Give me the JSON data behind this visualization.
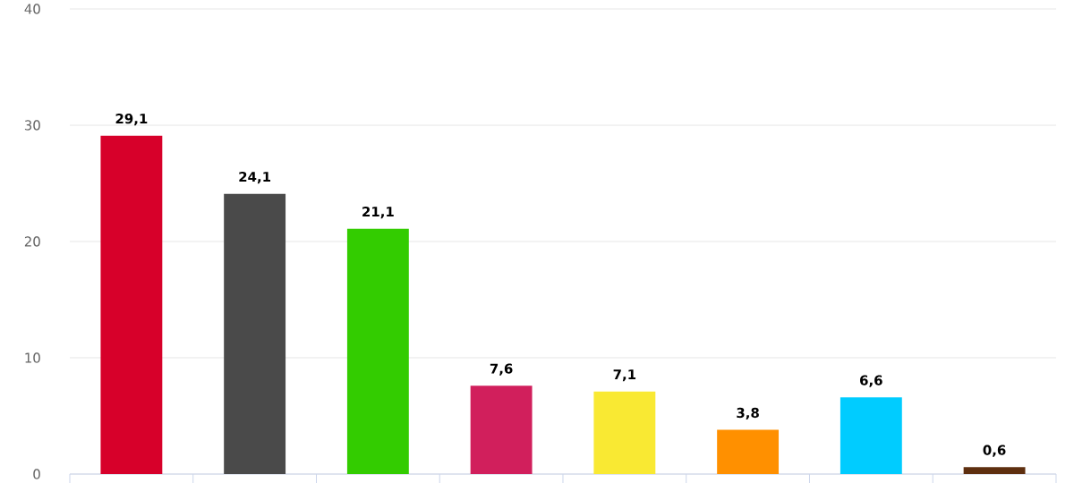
{
  "chart_data": {
    "type": "bar",
    "categories": [
      null,
      null,
      null,
      null,
      null,
      null,
      null,
      null
    ],
    "values": [
      29.1,
      24.1,
      21.1,
      7.6,
      7.1,
      3.8,
      6.6,
      0.6
    ],
    "colors": [
      "#d7002a",
      "#4a4a4a",
      "#33cc00",
      "#d11f5c",
      "#f9e933",
      "#ff9000",
      "#00ccff",
      "#5e2f0f"
    ],
    "value_labels": [
      "29,1",
      "24,1",
      "21,1",
      "7,6",
      "7,1",
      "3,8",
      "6,6",
      "0,6"
    ],
    "ylim": [
      0,
      40
    ],
    "yticks": [
      0,
      10,
      20,
      30,
      40
    ],
    "grid": "y"
  }
}
